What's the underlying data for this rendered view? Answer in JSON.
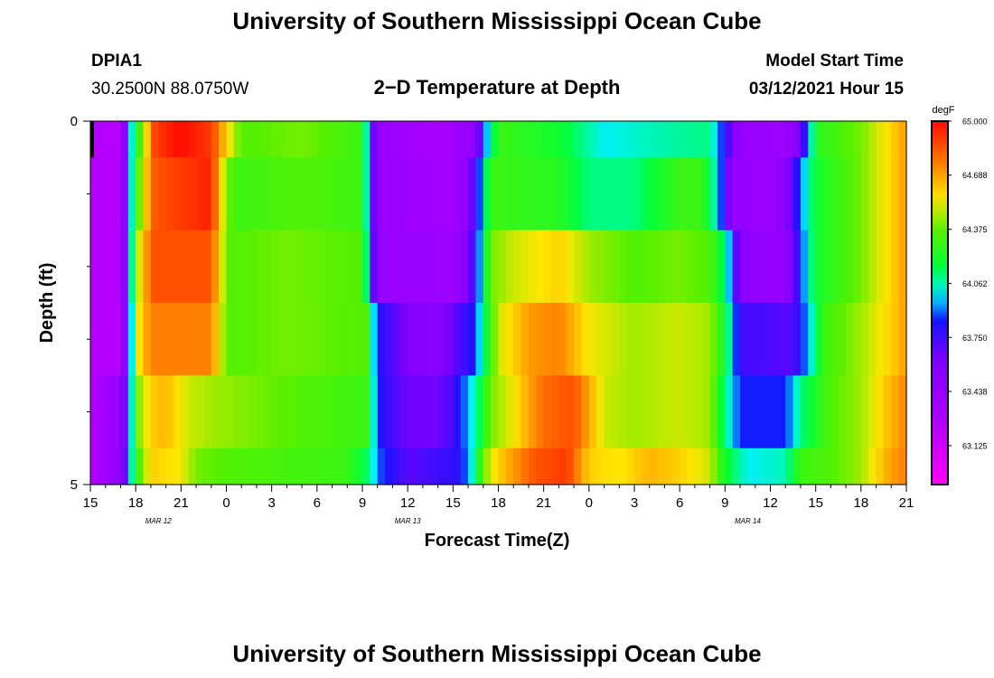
{
  "header": {
    "title": "University of Southern Mississippi Ocean Cube",
    "station": "DPIA1",
    "coords": "30.2500N 88.0750W",
    "plot_title": "2−D Temperature at Depth",
    "model_start_label": "Model Start Time",
    "model_start_value": "03/12/2021 Hour 15"
  },
  "footer": {
    "title": "University of Southern Mississippi Ocean Cube"
  },
  "chart_data": {
    "type": "heatmap",
    "xlabel": "Forecast Time(Z)",
    "ylabel": "Depth (ft)",
    "x_hours": [
      0,
      54
    ],
    "x_tick_labels": [
      "15",
      "18",
      "21",
      "0",
      "3",
      "6",
      "9",
      "12",
      "15",
      "18",
      "21",
      "0",
      "3",
      "6",
      "9",
      "12",
      "15",
      "18",
      "21"
    ],
    "date_labels": [
      {
        "text": "MAR 12",
        "hour": 4.5
      },
      {
        "text": "MAR 13",
        "hour": 21
      },
      {
        "text": "MAR 14",
        "hour": 43.5
      }
    ],
    "y_tick_labels": [
      "0",
      "5"
    ],
    "ylim": [
      0,
      5
    ],
    "colorbar": {
      "unit": "degF",
      "range": [
        62.9,
        65.0
      ],
      "tick_labels": [
        "65.000",
        "64.688",
        "64.375",
        "64.062",
        "63.750",
        "63.438",
        "63.125"
      ],
      "tick_values": [
        65.0,
        64.688,
        64.375,
        64.062,
        63.75,
        63.438,
        63.125
      ]
    },
    "layers": [
      {
        "depth": "0-0.5",
        "keyframes": [
          [
            0,
            63.25
          ],
          [
            2,
            63.25
          ],
          [
            2.6,
            63.95
          ],
          [
            3.4,
            64.4
          ],
          [
            4.3,
            64.9
          ],
          [
            6,
            65.0
          ],
          [
            8,
            64.9
          ],
          [
            9,
            64.6
          ],
          [
            10,
            64.35
          ],
          [
            14,
            64.4
          ],
          [
            18,
            64.3
          ],
          [
            18.5,
            63.85
          ],
          [
            19,
            63.45
          ],
          [
            23,
            63.3
          ],
          [
            25.5,
            63.5
          ],
          [
            26,
            63.85
          ],
          [
            27,
            64.3
          ],
          [
            31,
            64.2
          ],
          [
            34,
            64.0
          ],
          [
            37,
            64.05
          ],
          [
            41,
            64.1
          ],
          [
            42,
            63.8
          ],
          [
            43,
            63.45
          ],
          [
            46,
            63.4
          ],
          [
            47,
            63.65
          ],
          [
            47.5,
            63.9
          ],
          [
            48,
            64.25
          ],
          [
            51,
            64.4
          ],
          [
            53,
            64.6
          ],
          [
            54,
            64.7
          ]
        ]
      },
      {
        "depth": "0.5-1.5",
        "keyframes": [
          [
            0,
            63.25
          ],
          [
            2,
            63.25
          ],
          [
            2.6,
            63.95
          ],
          [
            3.4,
            64.5
          ],
          [
            4.3,
            64.85
          ],
          [
            8,
            64.95
          ],
          [
            8.8,
            64.5
          ],
          [
            9.5,
            64.3
          ],
          [
            14,
            64.35
          ],
          [
            18,
            64.3
          ],
          [
            18.5,
            63.85
          ],
          [
            19,
            63.45
          ],
          [
            24,
            63.35
          ],
          [
            25,
            63.55
          ],
          [
            25.8,
            63.9
          ],
          [
            26.5,
            64.3
          ],
          [
            31,
            64.25
          ],
          [
            33,
            64.1
          ],
          [
            36,
            64.1
          ],
          [
            39,
            64.3
          ],
          [
            40.5,
            64.3
          ],
          [
            41.5,
            64.0
          ],
          [
            42.5,
            63.5
          ],
          [
            45,
            63.4
          ],
          [
            46,
            63.55
          ],
          [
            47,
            63.9
          ],
          [
            48,
            64.2
          ],
          [
            51,
            64.4
          ],
          [
            53,
            64.6
          ],
          [
            54,
            64.7
          ]
        ]
      },
      {
        "depth": "1.5-2.5",
        "keyframes": [
          [
            0,
            63.25
          ],
          [
            2,
            63.25
          ],
          [
            2.6,
            63.95
          ],
          [
            3.2,
            64.5
          ],
          [
            4.1,
            64.85
          ],
          [
            8,
            64.85
          ],
          [
            8.6,
            64.55
          ],
          [
            9.3,
            64.35
          ],
          [
            13,
            64.4
          ],
          [
            18,
            64.35
          ],
          [
            18.5,
            63.9
          ],
          [
            19,
            63.45
          ],
          [
            24,
            63.4
          ],
          [
            25,
            63.6
          ],
          [
            25.8,
            63.95
          ],
          [
            26.5,
            64.4
          ],
          [
            28,
            64.5
          ],
          [
            31,
            64.6
          ],
          [
            33,
            64.45
          ],
          [
            36,
            64.35
          ],
          [
            39,
            64.4
          ],
          [
            41,
            64.35
          ],
          [
            42,
            64.1
          ],
          [
            43,
            63.55
          ],
          [
            46,
            63.45
          ],
          [
            47,
            63.85
          ],
          [
            48,
            64.2
          ],
          [
            51,
            64.4
          ],
          [
            53,
            64.6
          ],
          [
            54,
            64.7
          ]
        ]
      },
      {
        "depth": "2.5-3.5",
        "keyframes": [
          [
            0,
            63.25
          ],
          [
            2,
            63.25
          ],
          [
            2.7,
            63.95
          ],
          [
            3.2,
            64.55
          ],
          [
            4,
            64.75
          ],
          [
            8,
            64.75
          ],
          [
            8.6,
            64.5
          ],
          [
            9.3,
            64.35
          ],
          [
            13,
            64.4
          ],
          [
            18.3,
            64.35
          ],
          [
            18.7,
            64.0
          ],
          [
            19.2,
            63.8
          ],
          [
            21,
            63.6
          ],
          [
            23,
            63.55
          ],
          [
            25.5,
            63.85
          ],
          [
            26,
            64.1
          ],
          [
            27,
            64.5
          ],
          [
            29,
            64.7
          ],
          [
            31,
            64.75
          ],
          [
            33,
            64.55
          ],
          [
            36,
            64.45
          ],
          [
            39,
            64.5
          ],
          [
            41,
            64.45
          ],
          [
            42,
            64.2
          ],
          [
            43,
            63.75
          ],
          [
            46.5,
            63.7
          ],
          [
            47.5,
            63.95
          ],
          [
            48.5,
            64.3
          ],
          [
            51,
            64.45
          ],
          [
            53,
            64.6
          ],
          [
            54,
            64.7
          ]
        ]
      },
      {
        "depth": "3.5-4.5",
        "keyframes": [
          [
            0,
            63.25
          ],
          [
            2.1,
            63.5
          ],
          [
            2.6,
            63.9
          ],
          [
            3.1,
            64.4
          ],
          [
            4,
            64.6
          ],
          [
            5,
            64.65
          ],
          [
            6.5,
            64.5
          ],
          [
            8,
            64.45
          ],
          [
            14,
            64.35
          ],
          [
            18.3,
            64.3
          ],
          [
            18.7,
            64.05
          ],
          [
            19.3,
            63.8
          ],
          [
            21,
            63.65
          ],
          [
            23,
            63.65
          ],
          [
            24,
            63.75
          ],
          [
            25.5,
            64.05
          ],
          [
            26.5,
            64.4
          ],
          [
            28,
            64.55
          ],
          [
            30,
            64.8
          ],
          [
            32,
            64.85
          ],
          [
            34,
            64.5
          ],
          [
            36,
            64.45
          ],
          [
            39,
            64.5
          ],
          [
            41,
            64.45
          ],
          [
            42,
            64.1
          ],
          [
            43,
            63.85
          ],
          [
            46,
            63.85
          ],
          [
            47,
            64.1
          ],
          [
            49,
            64.35
          ],
          [
            51,
            64.45
          ],
          [
            53,
            64.65
          ],
          [
            54,
            64.75
          ]
        ]
      },
      {
        "depth": "4.5-5",
        "keyframes": [
          [
            0,
            63.25
          ],
          [
            2.1,
            63.5
          ],
          [
            2.5,
            63.9
          ],
          [
            3,
            64.25
          ],
          [
            4,
            64.6
          ],
          [
            6,
            64.55
          ],
          [
            7,
            64.4
          ],
          [
            9,
            64.35
          ],
          [
            17,
            64.3
          ],
          [
            18.5,
            64.1
          ],
          [
            19,
            63.9
          ],
          [
            21,
            63.7
          ],
          [
            24.5,
            63.8
          ],
          [
            25.5,
            64.1
          ],
          [
            26,
            64.4
          ],
          [
            27,
            64.6
          ],
          [
            29.5,
            64.85
          ],
          [
            31.5,
            64.9
          ],
          [
            33,
            64.6
          ],
          [
            35,
            64.55
          ],
          [
            37,
            64.65
          ],
          [
            39,
            64.6
          ],
          [
            41,
            64.5
          ],
          [
            42,
            64.2
          ],
          [
            43.5,
            64.0
          ],
          [
            46,
            64.05
          ],
          [
            47,
            64.3
          ],
          [
            49,
            64.35
          ],
          [
            51,
            64.45
          ],
          [
            53,
            64.7
          ],
          [
            54,
            64.75
          ]
        ]
      }
    ]
  }
}
